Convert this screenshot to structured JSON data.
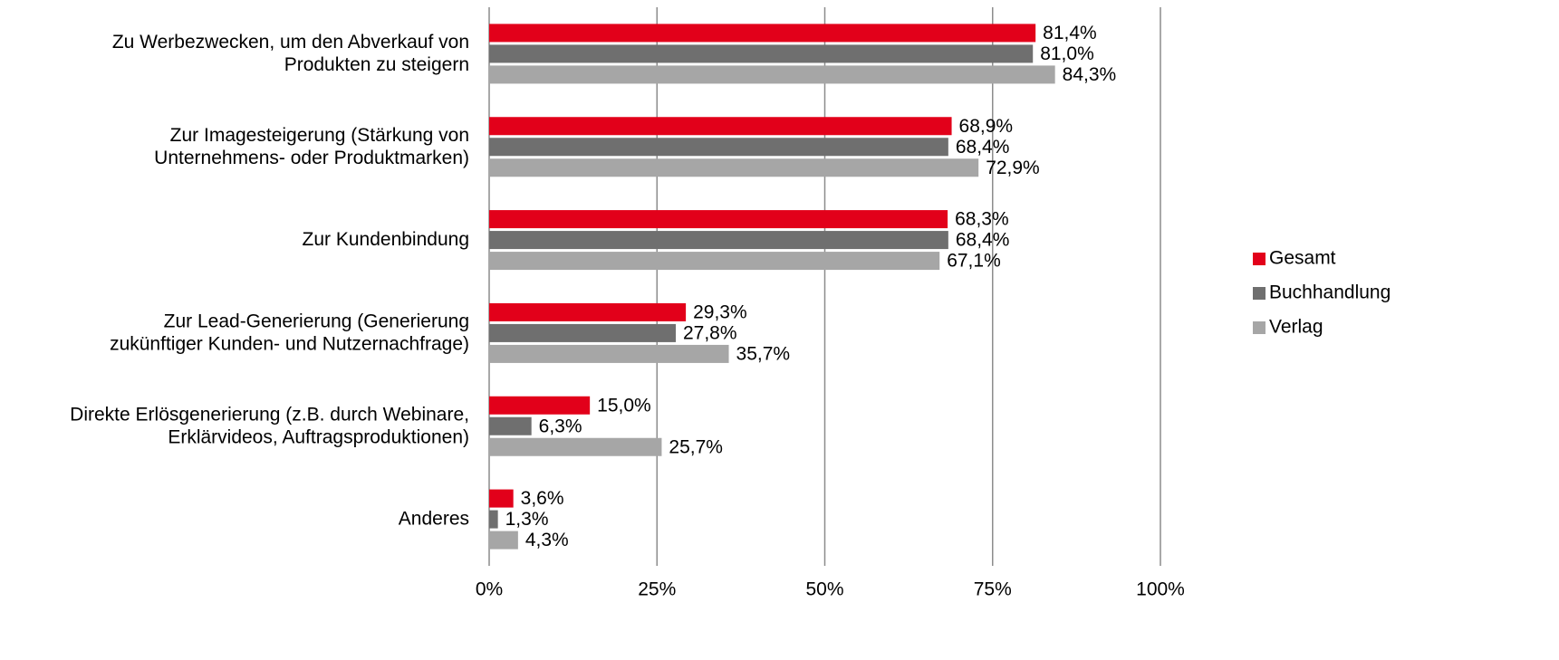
{
  "chart_data": {
    "type": "bar",
    "orientation": "horizontal",
    "categories": [
      "Zu Werbezwecken, um den Abverkauf von\nProdukten zu steigern",
      "Zur Imagesteigerung (Stärkung von\nUnternehmens- oder Produktmarken)",
      "Zur Kundenbindung",
      "Zur Lead-Generierung (Generierung\nzukünftiger Kunden- und Nutzernachfrage)",
      "Direkte Erlösgenerierung (z.B. durch Webinare,\nErklärvideos, Auftragsproduktionen)",
      "Anderes"
    ],
    "series": [
      {
        "name": "Gesamt",
        "color": "#e2001a",
        "values": [
          81.4,
          68.9,
          68.3,
          29.3,
          15.0,
          3.6
        ],
        "value_labels": [
          "81,4%",
          "68,9%",
          "68,3%",
          "29,3%",
          "15,0%",
          "3,6%"
        ]
      },
      {
        "name": "Buchhandlung",
        "color": "#6f6f6f",
        "values": [
          81.0,
          68.4,
          68.4,
          27.8,
          6.3,
          1.3
        ],
        "value_labels": [
          "81,0%",
          "68,4%",
          "68,4%",
          "27,8%",
          "6,3%",
          "1,3%"
        ]
      },
      {
        "name": "Verlag",
        "color": "#a6a6a6",
        "values": [
          84.3,
          72.9,
          67.1,
          35.7,
          25.7,
          4.3
        ],
        "value_labels": [
          "84,3%",
          "72,9%",
          "67,1%",
          "35,7%",
          "25,7%",
          "4,3%"
        ]
      }
    ],
    "xlim": [
      0,
      100
    ],
    "xticks": [
      {
        "value": 0,
        "label": "0%"
      },
      {
        "value": 25,
        "label": "25%"
      },
      {
        "value": 50,
        "label": "50%"
      },
      {
        "value": 75,
        "label": "75%"
      },
      {
        "value": 100,
        "label": "100%"
      }
    ],
    "grid": true,
    "legend": "right"
  }
}
